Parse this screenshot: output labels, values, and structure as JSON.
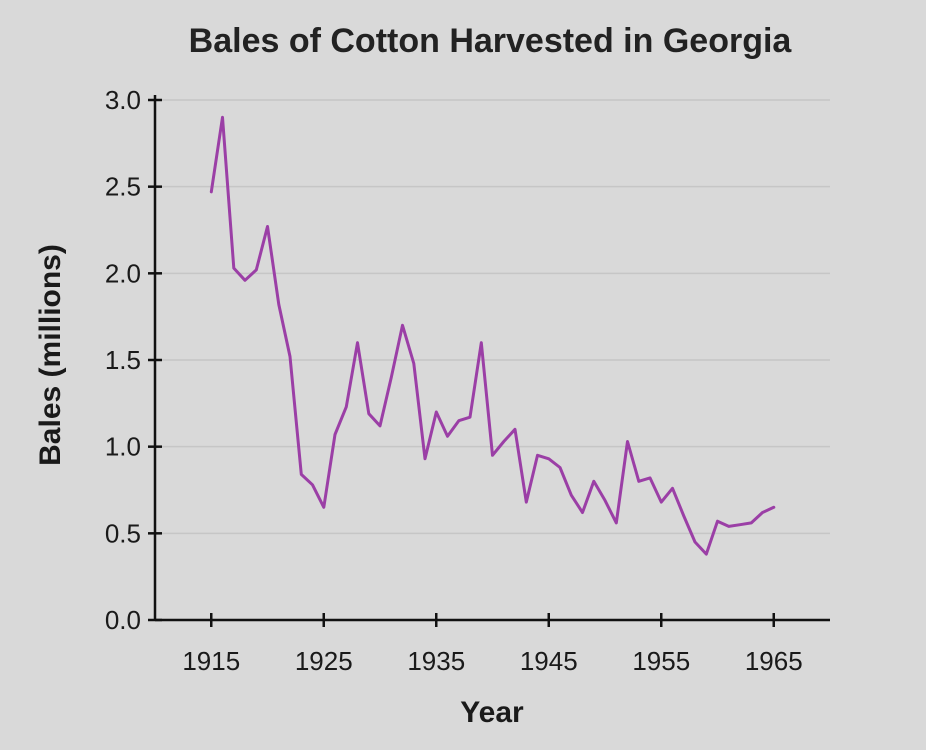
{
  "chart_data": {
    "type": "line",
    "title": "Bales of Cotton Harvested in Georgia",
    "xlabel": "Year",
    "ylabel": "Bales (millions)",
    "xlim": [
      1910,
      1970
    ],
    "ylim": [
      0,
      3.0
    ],
    "xticks": [
      1915,
      1925,
      1935,
      1945,
      1955,
      1965
    ],
    "yticks": [
      0.0,
      0.5,
      1.0,
      1.5,
      2.0,
      2.5,
      3.0
    ],
    "ytick_labels": [
      "0.0",
      "0.5",
      "1.0",
      "1.5",
      "2.0",
      "2.5",
      "3.0"
    ],
    "grid": true,
    "legend": "none",
    "series": [
      {
        "color": "#9b3fa6",
        "x": [
          1915,
          1916,
          1917,
          1918,
          1919,
          1920,
          1921,
          1922,
          1923,
          1924,
          1925,
          1926,
          1927,
          1928,
          1929,
          1930,
          1931,
          1932,
          1933,
          1934,
          1935,
          1936,
          1937,
          1938,
          1939,
          1940,
          1941,
          1942,
          1943,
          1944,
          1945,
          1946,
          1947,
          1948,
          1949,
          1950,
          1951,
          1952,
          1953,
          1954,
          1955,
          1956,
          1957,
          1958,
          1959,
          1960,
          1961,
          1962,
          1963,
          1964,
          1965
        ],
        "y": [
          2.47,
          2.9,
          2.03,
          1.96,
          2.02,
          2.27,
          1.82,
          1.52,
          0.84,
          0.78,
          0.65,
          1.07,
          1.23,
          1.6,
          1.19,
          1.12,
          1.4,
          1.7,
          1.48,
          0.93,
          1.2,
          1.06,
          1.15,
          1.17,
          1.6,
          0.95,
          1.03,
          1.1,
          0.68,
          0.95,
          0.93,
          0.88,
          0.72,
          0.62,
          0.8,
          0.69,
          0.56,
          1.03,
          0.8,
          0.82,
          0.68,
          0.76,
          0.6,
          0.45,
          0.38,
          0.57,
          0.54,
          0.55,
          0.56,
          0.62,
          0.65
        ]
      }
    ]
  }
}
